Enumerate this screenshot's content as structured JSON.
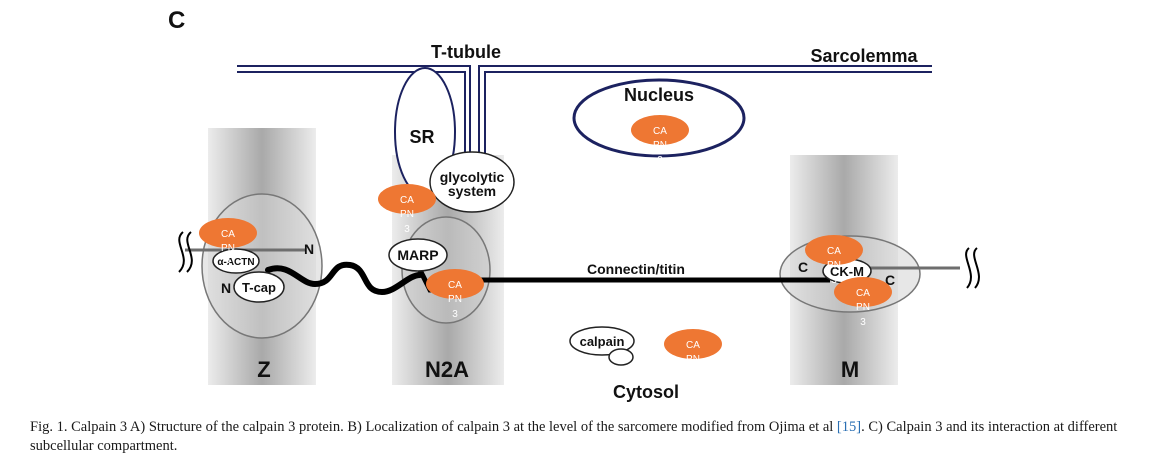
{
  "panel_label": "C",
  "labels": {
    "t_tubule": "T-tubule",
    "sarcolemma": "Sarcolemma",
    "nucleus": "Nucleus",
    "sr": "SR",
    "glycolytic_line1": "glycolytic",
    "glycolytic_line2": "system",
    "marp": "MARP",
    "connectin": "Connectin/titin",
    "actn": "α-ACTN",
    "tcap": "T-cap",
    "ckm": "CK-M",
    "n_left": "N",
    "n_right": "N",
    "c_left": "C",
    "c_right": "C",
    "calpain": "calpain",
    "z": "Z",
    "n2a": "N2A",
    "m": "M",
    "cytosol": "Cytosol"
  },
  "capn3_badge": {
    "line1": "CA",
    "line2": "PN",
    "line3": "3",
    "color": "#ee7733"
  },
  "caption": {
    "text_before_ref": "Fig. 1.  Calpain 3 A) Structure of the calpain 3 protein. B) Localization of calpain 3 at the level of the sarcomere modified from Ojima et al ",
    "ref": "[15]",
    "text_after_ref": ". C) Calpain 3 and its interaction at different subcellular compartment."
  },
  "colors": {
    "membrane": "#1c2260",
    "badge": "#ee7733",
    "band": "#b8b8b8"
  }
}
